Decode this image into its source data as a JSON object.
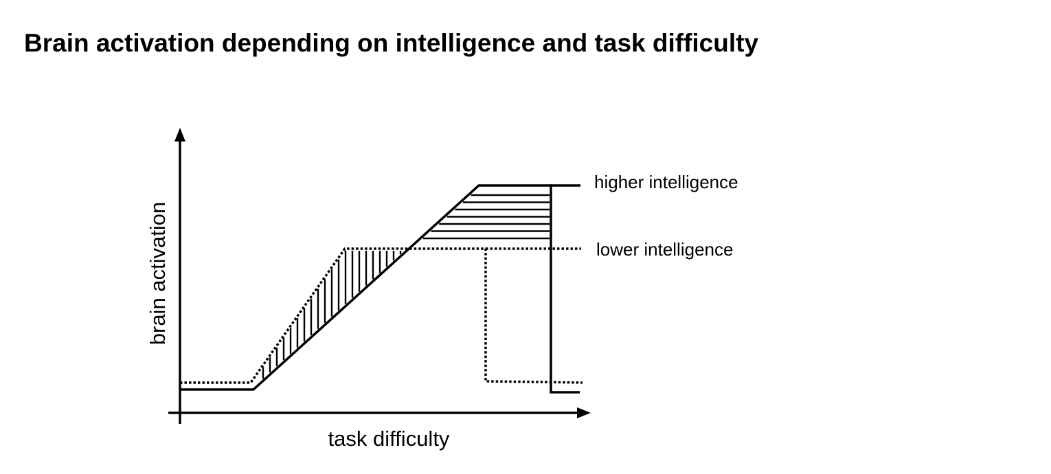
{
  "title": "Brain activation depending on intelligence and task difficulty",
  "diagram": {
    "x_axis_label": "task difficulty",
    "y_axis_label": "brain activation",
    "curves": [
      {
        "label": "higher intelligence",
        "line_style": "solid"
      },
      {
        "label": "lower intelligence",
        "line_style": "dotted"
      }
    ]
  }
}
